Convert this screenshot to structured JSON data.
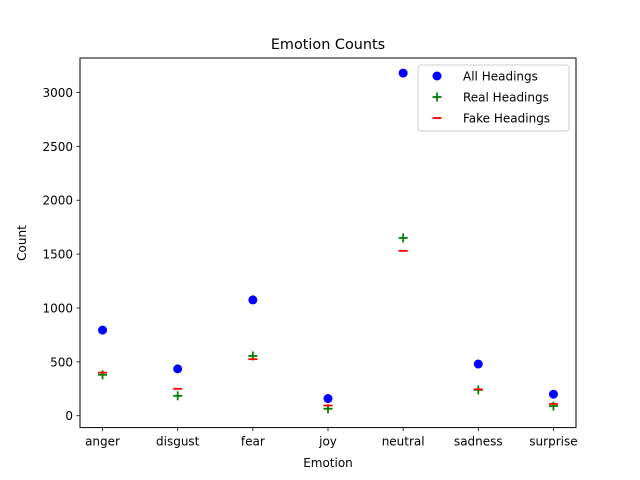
{
  "chart_data": {
    "type": "scatter",
    "title": "Emotion Counts",
    "xlabel": "Emotion",
    "ylabel": "Count",
    "categories": [
      "anger",
      "disgust",
      "fear",
      "joy",
      "neutral",
      "sadness",
      "surprise"
    ],
    "ylim": [
      -110,
      3320
    ],
    "yticks": [
      0,
      500,
      1000,
      1500,
      2000,
      2500,
      3000
    ],
    "grid": false,
    "legend_position": "top-right",
    "series": [
      {
        "name": "All Headings",
        "marker": "circle",
        "color": "#0000ff",
        "values": [
          795,
          435,
          1075,
          160,
          3180,
          480,
          200
        ]
      },
      {
        "name": "Real Headings",
        "marker": "plus",
        "color": "#008000",
        "values": [
          380,
          185,
          555,
          65,
          1650,
          240,
          90
        ]
      },
      {
        "name": "Fake Headings",
        "marker": "dash",
        "color": "#ff0000",
        "values": [
          400,
          250,
          525,
          95,
          1530,
          245,
          110
        ]
      }
    ]
  }
}
